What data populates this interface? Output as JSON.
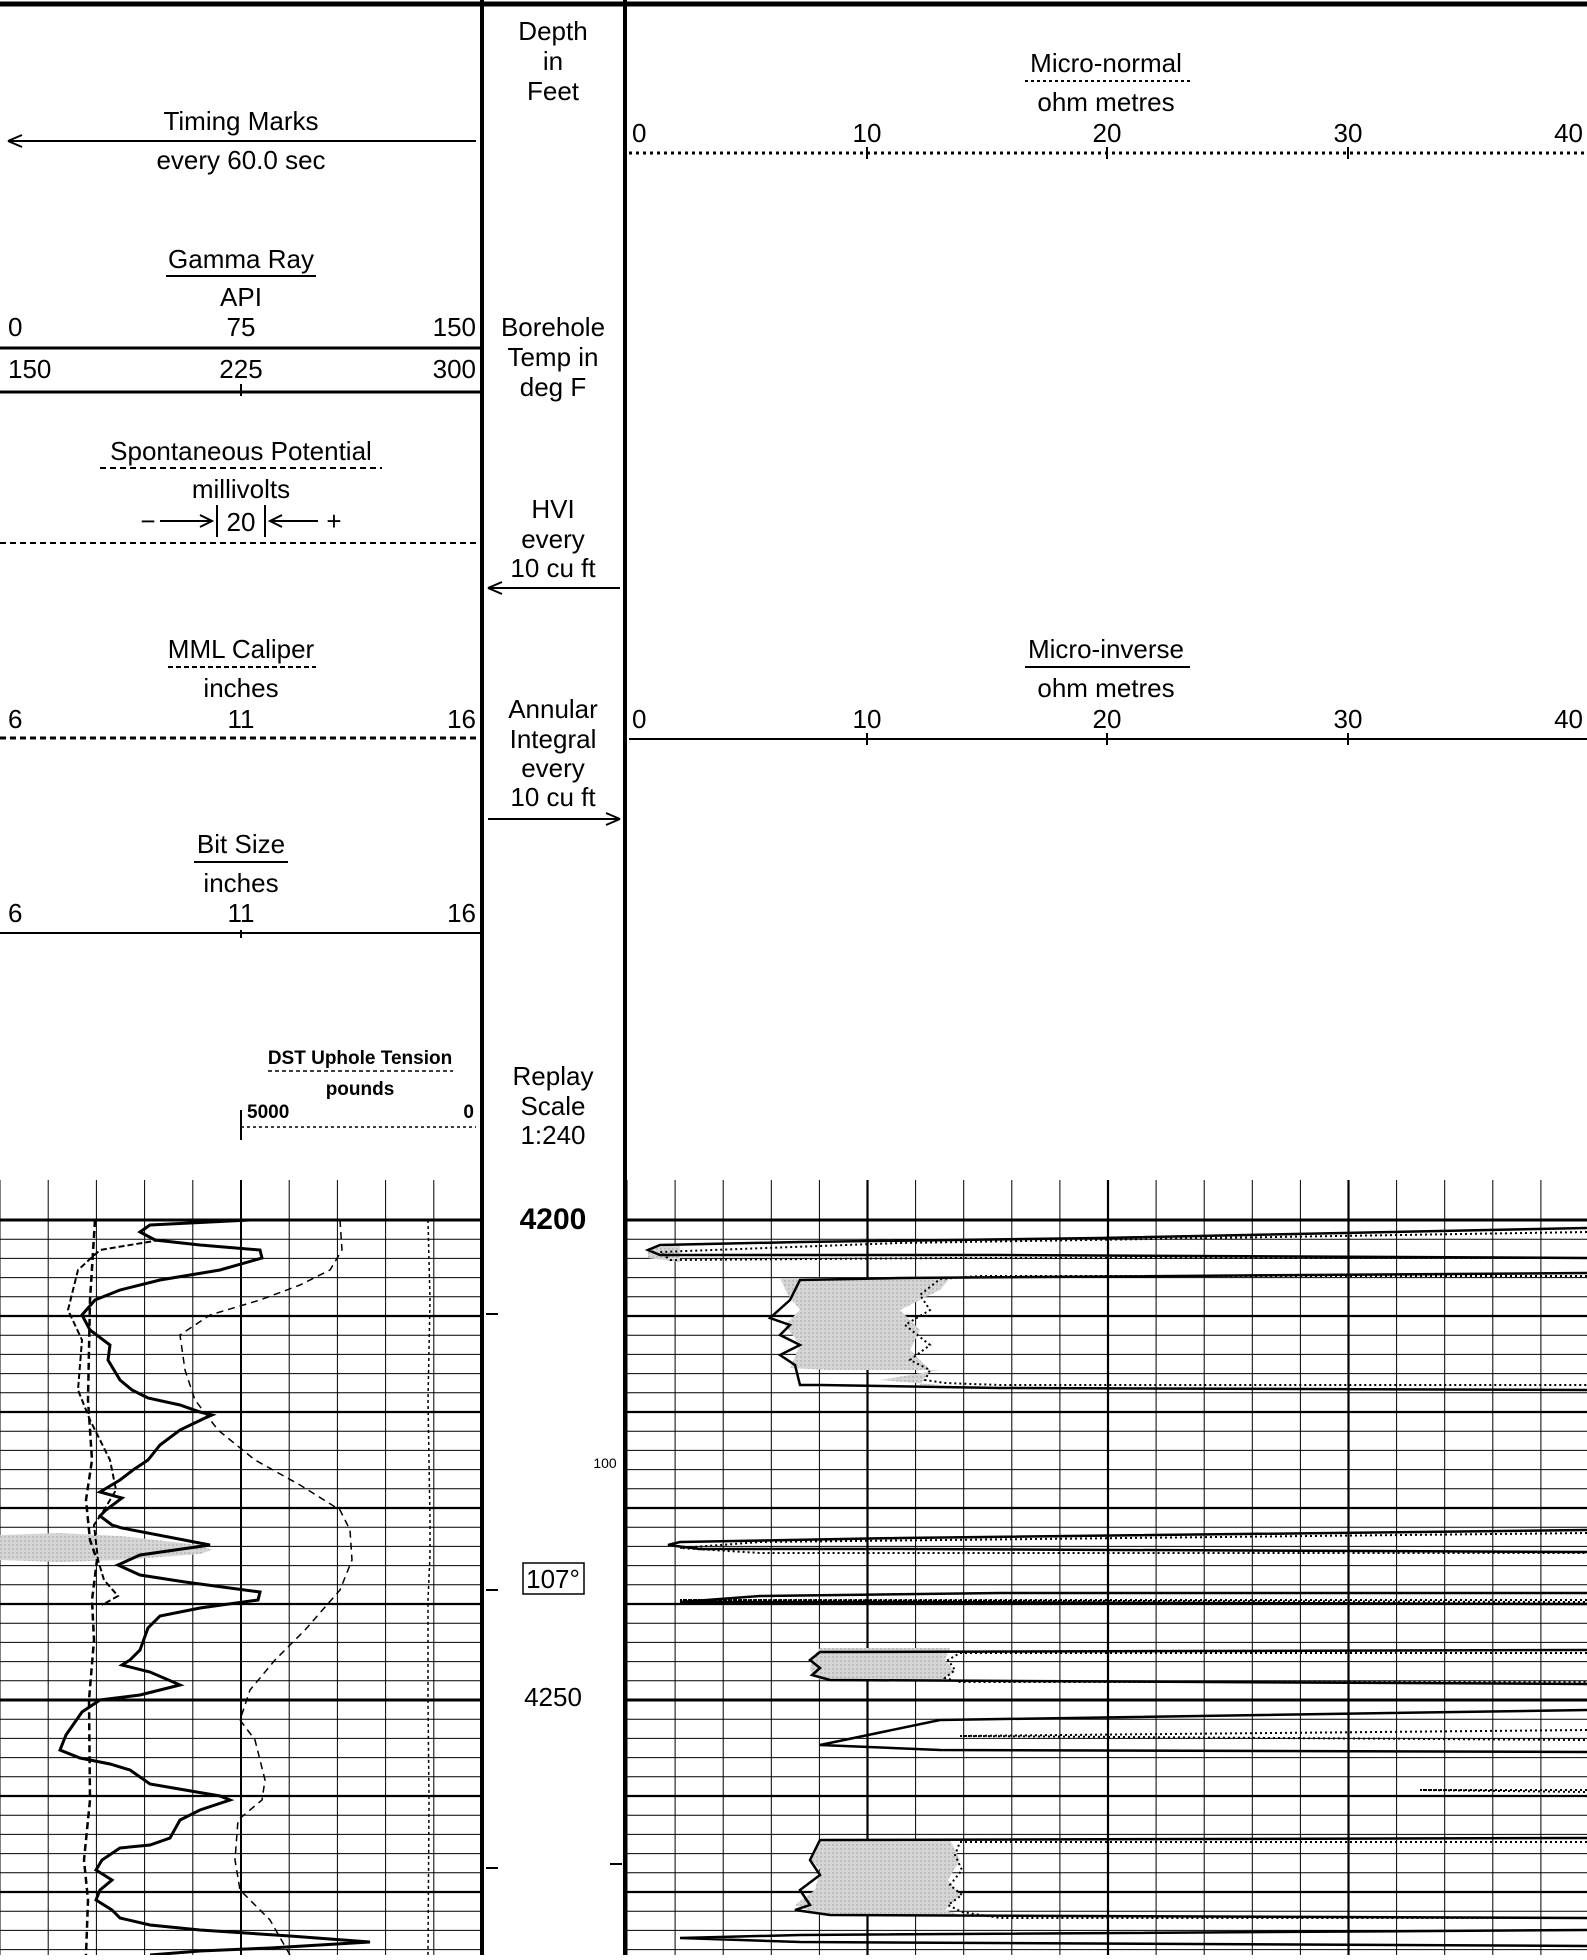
{
  "left_track": {
    "timing_marks": {
      "title": "Timing Marks",
      "sub": "every 60.0 sec"
    },
    "gamma_ray": {
      "title": "Gamma Ray",
      "unit": "API",
      "scale1": [
        "0",
        "75",
        "150"
      ],
      "scale2": [
        "150",
        "225",
        "300"
      ]
    },
    "sp": {
      "title": "Spontaneous Potential",
      "unit": "millivolts",
      "minus": "−",
      "value": "20",
      "plus": "+"
    },
    "caliper": {
      "title": "MML Caliper",
      "unit": "inches",
      "scale": [
        "6",
        "11",
        "16"
      ]
    },
    "bit_size": {
      "title": "Bit Size",
      "unit": "inches",
      "scale": [
        "6",
        "11",
        "16"
      ]
    },
    "dst": {
      "title": "DST Uphole Tension",
      "unit": "pounds",
      "scale": [
        "5000",
        "0"
      ]
    }
  },
  "depth_track": {
    "header": [
      "Depth",
      "in",
      "Feet"
    ],
    "temp": [
      "Borehole",
      "Temp in",
      "deg F"
    ],
    "hvi": [
      "HVI",
      "every",
      "10 cu ft"
    ],
    "annular": [
      "Annular",
      "Integral",
      "every",
      "10 cu ft"
    ],
    "replay": [
      "Replay",
      "Scale",
      "1:240"
    ],
    "depth_labels": [
      "4200",
      "4250"
    ],
    "small_label": "100",
    "temp_readout": "107°"
  },
  "right_track": {
    "micro_normal": {
      "title": "Micro-normal",
      "unit": "ohm metres",
      "scale": [
        "0",
        "10",
        "20",
        "30",
        "40"
      ]
    },
    "micro_inverse": {
      "title": "Micro-inverse",
      "unit": "ohm metres",
      "scale": [
        "0",
        "10",
        "20",
        "30",
        "40"
      ]
    }
  }
}
